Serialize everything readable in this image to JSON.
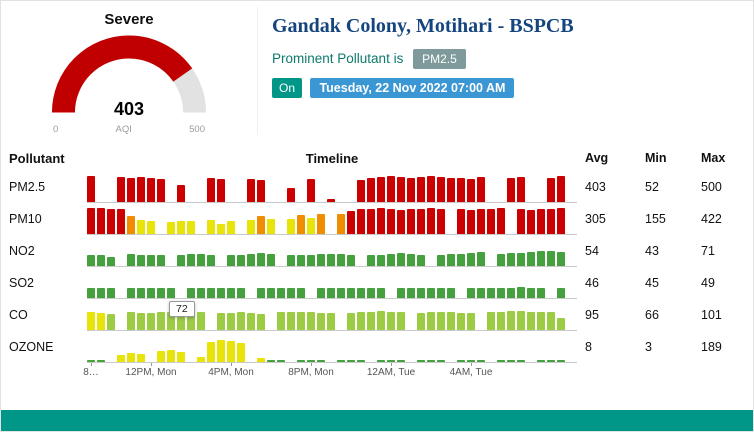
{
  "header": {
    "title": "Gandak Colony, Motihari - BSPCB",
    "prominent_label": "Prominent Pollutant is",
    "prominent_value": "PM2.5",
    "on_label": "On",
    "datetime": "Tuesday, 22 Nov 2022 07:00 AM"
  },
  "gauge": {
    "status": "Severe",
    "value": "403",
    "min_label": "0",
    "axis_label": "AQI",
    "max_label": "500",
    "scale_min": 0,
    "scale_max": 500,
    "fill_color": "#c00000",
    "track_color": "#e2e2e2"
  },
  "table": {
    "headers": {
      "pollutant": "Pollutant",
      "timeline": "Timeline",
      "avg": "Avg",
      "min": "Min",
      "max": "Max"
    },
    "rows": [
      {
        "name": "PM2.5",
        "avg": "403",
        "min": "52",
        "max": "500"
      },
      {
        "name": "PM10",
        "avg": "305",
        "min": "155",
        "max": "422"
      },
      {
        "name": "NO2",
        "avg": "54",
        "min": "43",
        "max": "71"
      },
      {
        "name": "SO2",
        "avg": "46",
        "min": "45",
        "max": "49"
      },
      {
        "name": "CO",
        "avg": "95",
        "min": "66",
        "max": "101"
      },
      {
        "name": "OZONE",
        "avg": "8",
        "min": "3",
        "max": "189"
      }
    ]
  },
  "chart_data": {
    "type": "bar",
    "title": "Half-hourly pollutant timelines, 8AM Mon 21 Nov - 7AM Tue 22 Nov 2022",
    "legend": "none",
    "grid": false,
    "palette": {
      "r": "#cc0000",
      "o": "#f08c00",
      "y": "#e8e409",
      "g": "#44a13e",
      "l": "#9ccc44"
    },
    "x_ticks": [
      {
        "label": "8…",
        "bar_index": 0
      },
      {
        "label": "12PM, Mon",
        "bar_index": 6
      },
      {
        "label": "4PM, Mon",
        "bar_index": 14
      },
      {
        "label": "8PM, Mon",
        "bar_index": 22
      },
      {
        "label": "12AM, Tue",
        "bar_index": 30
      },
      {
        "label": "4AM, Tue",
        "bar_index": 38
      }
    ],
    "rows": [
      {
        "name": "PM2.5",
        "scale_max": 500,
        "bars": [
          [
            500,
            "r"
          ],
          null,
          null,
          [
            480,
            "r"
          ],
          [
            460,
            "r"
          ],
          [
            490,
            "r"
          ],
          [
            470,
            "r"
          ],
          [
            450,
            "r"
          ],
          null,
          [
            320,
            "r"
          ],
          null,
          null,
          [
            470,
            "r"
          ],
          [
            440,
            "r"
          ],
          null,
          null,
          [
            450,
            "r"
          ],
          [
            430,
            "r"
          ],
          null,
          null,
          [
            260,
            "r"
          ],
          null,
          [
            440,
            "r"
          ],
          null,
          [
            52,
            "r"
          ],
          null,
          null,
          [
            430,
            "r"
          ],
          [
            460,
            "r"
          ],
          [
            490,
            "r"
          ],
          [
            500,
            "r"
          ],
          [
            480,
            "r"
          ],
          [
            470,
            "r"
          ],
          [
            490,
            "r"
          ],
          [
            500,
            "r"
          ],
          [
            480,
            "r"
          ],
          [
            460,
            "r"
          ],
          [
            470,
            "r"
          ],
          [
            450,
            "r"
          ],
          [
            480,
            "r"
          ],
          null,
          null,
          [
            460,
            "r"
          ],
          [
            480,
            "r"
          ],
          null,
          null,
          [
            470,
            "r"
          ],
          [
            500,
            "r"
          ]
        ]
      },
      {
        "name": "PM10",
        "scale_max": 422,
        "bars": [
          [
            420,
            "r"
          ],
          [
            415,
            "r"
          ],
          [
            410,
            "r"
          ],
          [
            400,
            "r"
          ],
          [
            300,
            "o"
          ],
          [
            220,
            "y"
          ],
          [
            210,
            "y"
          ],
          null,
          [
            200,
            "y"
          ],
          [
            215,
            "y"
          ],
          [
            205,
            "y"
          ],
          null,
          [
            220,
            "y"
          ],
          [
            155,
            "y"
          ],
          [
            210,
            "y"
          ],
          null,
          [
            230,
            "y"
          ],
          [
            300,
            "o"
          ],
          [
            240,
            "y"
          ],
          null,
          [
            250,
            "y"
          ],
          [
            310,
            "o"
          ],
          [
            260,
            "y"
          ],
          [
            320,
            "o"
          ],
          null,
          [
            330,
            "o"
          ],
          [
            380,
            "r"
          ],
          [
            400,
            "r"
          ],
          [
            410,
            "r"
          ],
          [
            420,
            "r"
          ],
          [
            400,
            "r"
          ],
          [
            390,
            "r"
          ],
          [
            410,
            "r"
          ],
          [
            400,
            "r"
          ],
          [
            420,
            "r"
          ],
          [
            410,
            "r"
          ],
          null,
          [
            400,
            "r"
          ],
          [
            390,
            "r"
          ],
          [
            410,
            "r"
          ],
          [
            400,
            "r"
          ],
          [
            420,
            "r"
          ],
          null,
          [
            400,
            "r"
          ],
          [
            390,
            "r"
          ],
          [
            410,
            "r"
          ],
          [
            400,
            "r"
          ],
          [
            422,
            "r"
          ]
        ]
      },
      {
        "name": "NO2",
        "scale_max": 120,
        "bars": [
          [
            50,
            "g"
          ],
          [
            52,
            "g"
          ],
          [
            43,
            "g"
          ],
          null,
          [
            55,
            "g"
          ],
          [
            53,
            "g"
          ],
          [
            50,
            "g"
          ],
          [
            49,
            "g"
          ],
          null,
          [
            52,
            "g"
          ],
          [
            54,
            "g"
          ],
          [
            56,
            "g"
          ],
          [
            53,
            "g"
          ],
          null,
          [
            50,
            "g"
          ],
          [
            52,
            "g"
          ],
          [
            55,
            "g"
          ],
          [
            58,
            "g"
          ],
          [
            54,
            "g"
          ],
          null,
          [
            52,
            "g"
          ],
          [
            50,
            "g"
          ],
          [
            53,
            "g"
          ],
          [
            55,
            "g"
          ],
          [
            57,
            "g"
          ],
          [
            54,
            "g"
          ],
          [
            52,
            "g"
          ],
          null,
          [
            50,
            "g"
          ],
          [
            53,
            "g"
          ],
          [
            56,
            "g"
          ],
          [
            58,
            "g"
          ],
          [
            55,
            "g"
          ],
          [
            53,
            "g"
          ],
          null,
          [
            52,
            "g"
          ],
          [
            54,
            "g"
          ],
          [
            57,
            "g"
          ],
          [
            60,
            "g"
          ],
          [
            63,
            "g"
          ],
          null,
          [
            55,
            "g"
          ],
          [
            58,
            "g"
          ],
          [
            62,
            "g"
          ],
          [
            65,
            "g"
          ],
          [
            71,
            "g"
          ],
          [
            68,
            "g"
          ],
          [
            64,
            "g"
          ]
        ]
      },
      {
        "name": "SO2",
        "scale_max": 120,
        "bars": [
          [
            46,
            "g"
          ],
          [
            47,
            "g"
          ],
          [
            46,
            "g"
          ],
          null,
          [
            47,
            "g"
          ],
          [
            46,
            "g"
          ],
          [
            45,
            "g"
          ],
          [
            46,
            "g"
          ],
          [
            47,
            "g"
          ],
          null,
          [
            46,
            "g"
          ],
          [
            47,
            "g"
          ],
          [
            48,
            "g"
          ],
          [
            46,
            "g"
          ],
          [
            45,
            "g"
          ],
          [
            47,
            "g"
          ],
          null,
          [
            46,
            "g"
          ],
          [
            47,
            "g"
          ],
          [
            48,
            "g"
          ],
          [
            47,
            "g"
          ],
          [
            46,
            "g"
          ],
          null,
          [
            47,
            "g"
          ],
          [
            46,
            "g"
          ],
          [
            45,
            "g"
          ],
          [
            46,
            "g"
          ],
          [
            47,
            "g"
          ],
          [
            48,
            "g"
          ],
          [
            47,
            "g"
          ],
          null,
          [
            46,
            "g"
          ],
          [
            47,
            "g"
          ],
          [
            46,
            "g"
          ],
          [
            45,
            "g"
          ],
          [
            47,
            "g"
          ],
          [
            48,
            "g"
          ],
          null,
          [
            46,
            "g"
          ],
          [
            47,
            "g"
          ],
          [
            46,
            "g"
          ],
          [
            47,
            "g"
          ],
          [
            48,
            "g"
          ],
          [
            49,
            "g"
          ],
          [
            47,
            "g"
          ],
          [
            46,
            "g"
          ],
          null,
          [
            46,
            "g"
          ]
        ]
      },
      {
        "name": "CO",
        "scale_max": 140,
        "tooltip": {
          "bar_index": 9,
          "text": "72"
        },
        "bars": [
          [
            95,
            "y"
          ],
          [
            92,
            "y"
          ],
          [
            88,
            "l"
          ],
          null,
          [
            96,
            "l"
          ],
          [
            94,
            "l"
          ],
          [
            90,
            "l"
          ],
          [
            96,
            "l"
          ],
          [
            98,
            "l"
          ],
          [
            72,
            "l"
          ],
          [
            95,
            "l"
          ],
          [
            97,
            "l"
          ],
          null,
          [
            92,
            "l"
          ],
          [
            94,
            "l"
          ],
          [
            96,
            "l"
          ],
          [
            90,
            "l"
          ],
          [
            88,
            "l"
          ],
          null,
          [
            95,
            "l"
          ],
          [
            97,
            "l"
          ],
          [
            99,
            "l"
          ],
          [
            96,
            "l"
          ],
          [
            94,
            "l"
          ],
          [
            92,
            "l"
          ],
          null,
          [
            90,
            "l"
          ],
          [
            95,
            "l"
          ],
          [
            97,
            "l"
          ],
          [
            100,
            "l"
          ],
          [
            98,
            "l"
          ],
          [
            96,
            "l"
          ],
          null,
          [
            94,
            "l"
          ],
          [
            96,
            "l"
          ],
          [
            98,
            "l"
          ],
          [
            95,
            "l"
          ],
          [
            92,
            "l"
          ],
          [
            90,
            "l"
          ],
          null,
          [
            96,
            "l"
          ],
          [
            98,
            "l"
          ],
          [
            100,
            "l"
          ],
          [
            101,
            "l"
          ],
          [
            99,
            "l"
          ],
          [
            97,
            "l"
          ],
          [
            95,
            "l"
          ],
          [
            66,
            "l"
          ]
        ]
      },
      {
        "name": "OZONE",
        "scale_max": 220,
        "bars": [
          [
            3,
            "g"
          ],
          [
            4,
            "g"
          ],
          null,
          [
            60,
            "y"
          ],
          [
            80,
            "y"
          ],
          [
            70,
            "y"
          ],
          null,
          [
            90,
            "y"
          ],
          [
            100,
            "y"
          ],
          [
            85,
            "y"
          ],
          null,
          [
            40,
            "y"
          ],
          [
            170,
            "y"
          ],
          [
            189,
            "y"
          ],
          [
            175,
            "y"
          ],
          [
            160,
            "y"
          ],
          null,
          [
            30,
            "y"
          ],
          [
            8,
            "g"
          ],
          [
            6,
            "g"
          ],
          null,
          [
            5,
            "g"
          ],
          [
            4,
            "g"
          ],
          [
            5,
            "g"
          ],
          null,
          [
            4,
            "g"
          ],
          [
            5,
            "g"
          ],
          [
            4,
            "g"
          ],
          null,
          [
            3,
            "g"
          ],
          [
            4,
            "g"
          ],
          [
            5,
            "g"
          ],
          null,
          [
            4,
            "g"
          ],
          [
            3,
            "g"
          ],
          [
            4,
            "g"
          ],
          null,
          [
            5,
            "g"
          ],
          [
            4,
            "g"
          ],
          [
            3,
            "g"
          ],
          null,
          [
            4,
            "g"
          ],
          [
            5,
            "g"
          ],
          [
            4,
            "g"
          ],
          null,
          [
            3,
            "g"
          ],
          [
            4,
            "g"
          ],
          [
            8,
            "g"
          ]
        ]
      }
    ]
  }
}
